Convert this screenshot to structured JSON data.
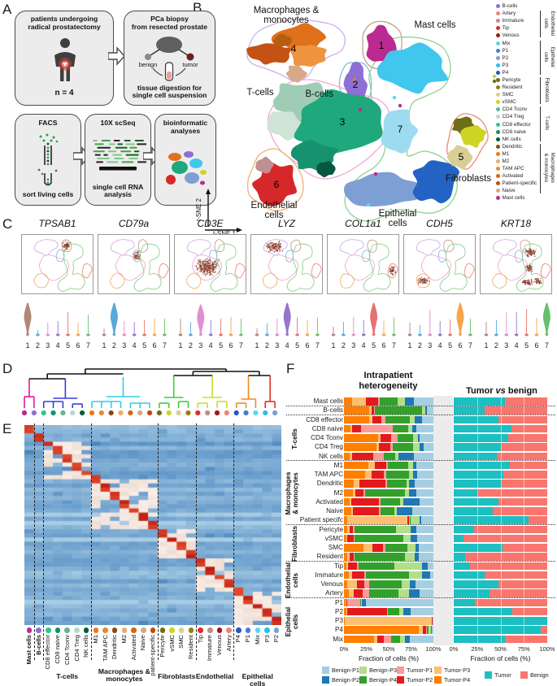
{
  "figure_letters": {
    "a": "A",
    "b": "B",
    "c": "C",
    "d": "D",
    "e": "E",
    "f": "F"
  },
  "panel_a": {
    "boxes": [
      {
        "title": "patients undergoing\nradical prostatectomy",
        "caption": "n = 4"
      },
      {
        "title": "PCa biopsy\nfrom resected prostate",
        "benign_label": "benign",
        "tumor_label": "tumor",
        "caption": "tissue digestion for\nsingle cell suspension"
      },
      {
        "title": "FACS",
        "caption": "sort living cells"
      },
      {
        "title": "10X scSeq",
        "caption": "single cell RNA\nanalysis"
      },
      {
        "title": "bioinformatic\nanalyses"
      }
    ]
  },
  "panel_b": {
    "axis": {
      "x": "t-SNE 1",
      "y": "t-SNE 2"
    },
    "cluster_labels": [
      {
        "num": "1",
        "name": "Mast cells"
      },
      {
        "num": "2",
        "name": "B-cells"
      },
      {
        "num": "3",
        "name": "T-cells"
      },
      {
        "num": "4",
        "name": "Macrophages &\nmonocytes"
      },
      {
        "num": "5",
        "name": "Fibroblasts"
      },
      {
        "num": "6",
        "name": "Endothelial\ncells"
      },
      {
        "num": "7",
        "name": "Epithelial\ncells"
      }
    ],
    "legend": {
      "items": [
        {
          "label": "B-cells",
          "color": "#8d6fd6"
        },
        {
          "label": "Artery",
          "color": "#f08478"
        },
        {
          "label": "Immature",
          "color": "#bc8f8f"
        },
        {
          "label": "Tip",
          "color": "#e02c2c"
        },
        {
          "label": "Venous",
          "color": "#a01818"
        },
        {
          "label": "Mix",
          "color": "#63d2f0"
        },
        {
          "label": "P1",
          "color": "#4a7bd0"
        },
        {
          "label": "P2",
          "color": "#7d9fd4"
        },
        {
          "label": "P3",
          "color": "#2fbde8"
        },
        {
          "label": "P4",
          "color": "#2457c5"
        },
        {
          "label": "Pericyte",
          "color": "#6e6e14"
        },
        {
          "label": "Resident",
          "color": "#9a7d0a"
        },
        {
          "label": "SMC",
          "color": "#d9cf94"
        },
        {
          "label": "vSMC",
          "color": "#cdd422"
        },
        {
          "label": "CD4 Tconv",
          "color": "#63b49a"
        },
        {
          "label": "CD4 Treg",
          "color": "#b9d8c8"
        },
        {
          "label": "CD8 effector",
          "color": "#2ec48e"
        },
        {
          "label": "CD8 naive",
          "color": "#13916a"
        },
        {
          "label": "NK cells",
          "color": "#0b5a3c"
        },
        {
          "label": "Dendritic",
          "color": "#8a4a10"
        },
        {
          "label": "M1",
          "color": "#f07818"
        },
        {
          "label": "M2",
          "color": "#f0aa68"
        },
        {
          "label": "TAM APC",
          "color": "#e88830"
        },
        {
          "label": "Activated",
          "color": "#d8650f"
        },
        {
          "label": "Patient-specific",
          "color": "#c04c0e"
        },
        {
          "label": "Naive",
          "color": "#d6a988"
        },
        {
          "label": "Mast cells",
          "color": "#bb2a90"
        }
      ],
      "groups": [
        {
          "label": "Endothelial\ncells",
          "start": 1,
          "end": 4
        },
        {
          "label": "Epithelial\ncells",
          "start": 5,
          "end": 9
        },
        {
          "label": "Fibroblasts",
          "start": 10,
          "end": 13
        },
        {
          "label": "T-cells",
          "start": 14,
          "end": 18
        },
        {
          "label": "Macrophages\n& monocytes",
          "start": 19,
          "end": 25
        }
      ]
    }
  },
  "panel_c": {
    "genes": [
      "TPSAB1",
      "CD79a",
      "CD3E",
      "LYZ",
      "COL1a1",
      "CDH5",
      "KRT18"
    ],
    "highlighted_population": [
      "Mast cells",
      "B-cells",
      "T-cells",
      "Macrophages & monocytes",
      "Fibroblasts",
      "Endothelial cells",
      "Epithelial cells"
    ],
    "x_ticks": [
      "1",
      "2",
      "3",
      "4",
      "5",
      "6",
      "7"
    ],
    "contour_colors": {
      "macro": "#cbb0e8",
      "mast": "#c89e8a",
      "b": "#85b8e0",
      "t": "#f2a7d3",
      "epi": "#8fd08f",
      "fibro": "#ef8a7a",
      "endo": "#f3b06e"
    },
    "dot_color": "#8a3a26"
  },
  "panel_e": {
    "columns": [
      {
        "label": "Mast cells",
        "color": "#bb2a90",
        "bold": true
      },
      {
        "label": "B-cells",
        "color": "#8d6fd6",
        "bold": true
      },
      {
        "label": "CD8 effector",
        "color": "#2ec48e",
        "bold": false
      },
      {
        "label": "CD8 naive",
        "color": "#13916a",
        "bold": false
      },
      {
        "label": "CD4 Tconv",
        "color": "#63b49a",
        "bold": false
      },
      {
        "label": "CD4 Treg",
        "color": "#b9d8c8",
        "bold": false
      },
      {
        "label": "NK cells",
        "color": "#0b5a3c",
        "bold": false
      },
      {
        "label": "M1",
        "color": "#f07818",
        "bold": false
      },
      {
        "label": "TAM APC",
        "color": "#e88830",
        "bold": false
      },
      {
        "label": "Dendritic",
        "color": "#8a4a10",
        "bold": false
      },
      {
        "label": "M2",
        "color": "#f0aa68",
        "bold": false
      },
      {
        "label": "Activated",
        "color": "#d8650f",
        "bold": false
      },
      {
        "label": "Naive",
        "color": "#d6a988",
        "bold": false
      },
      {
        "label": "patient-specific",
        "color": "#c04c0e",
        "bold": false
      },
      {
        "label": "Pericyte",
        "color": "#6e6e14",
        "bold": false
      },
      {
        "label": "vSMC",
        "color": "#cdd422",
        "bold": false
      },
      {
        "label": "SMC",
        "color": "#d9cf94",
        "bold": false
      },
      {
        "label": "Resident",
        "color": "#9a7d0a",
        "bold": false
      },
      {
        "label": "Tip",
        "color": "#e02c2c",
        "bold": false
      },
      {
        "label": "Immature",
        "color": "#bc8f8f",
        "bold": false
      },
      {
        "label": "Venous",
        "color": "#a01818",
        "bold": false
      },
      {
        "label": "Artery",
        "color": "#f08478",
        "bold": false
      },
      {
        "label": "P4",
        "color": "#2457c5",
        "bold": false
      },
      {
        "label": "P1",
        "color": "#4a7bd0",
        "bold": false
      },
      {
        "label": "Mix",
        "color": "#63d2f0",
        "bold": false
      },
      {
        "label": "P3",
        "color": "#2fbde8",
        "bold": false
      },
      {
        "label": "P2",
        "color": "#7d9fd4",
        "bold": false
      }
    ],
    "separators_after": [
      0,
      1,
      6,
      13,
      17,
      21
    ],
    "group_labels": [
      {
        "label": "T-cells",
        "start": 2,
        "end": 6
      },
      {
        "label": "Macrophages &\nmonocytes",
        "start": 7,
        "end": 13
      },
      {
        "label": "Fibroblasts",
        "start": 14,
        "end": 17
      },
      {
        "label": "Endothelial",
        "start": 18,
        "end": 21
      },
      {
        "label": "Epithelial cells",
        "start": 22,
        "end": 26
      }
    ]
  },
  "panel_f": {
    "title_left": "Intrapatient\nheterogeneity",
    "title_right_pre": "Tumor ",
    "title_right_it": "vs",
    "title_right_post": " benign",
    "xlabel": "Fraction of cells (%)",
    "x_ticks": [
      "0%",
      "25%",
      "50%",
      "75%",
      "100%"
    ],
    "groups": [
      {
        "label": "T-cells",
        "start": 2,
        "end": 6
      },
      {
        "label": "Macrophages\n& monocytes",
        "start": 7,
        "end": 13
      },
      {
        "label": "Fibroblasts",
        "start": 14,
        "end": 17
      },
      {
        "label": "Endothelial\ncells",
        "start": 18,
        "end": 21
      },
      {
        "label": "Epithelial\ncells",
        "start": 22,
        "end": 26
      }
    ],
    "separators_after": [
      0,
      1,
      6,
      13,
      17,
      21
    ],
    "legend_left": [
      {
        "label": "Benign-P1",
        "color": "#a6cee3"
      },
      {
        "label": "Benign-P2",
        "color": "#1f78b4"
      },
      {
        "label": "Benign-P3",
        "color": "#b2df8a"
      },
      {
        "label": "Benign-P4",
        "color": "#33a02c"
      },
      {
        "label": "Tumor-P1",
        "color": "#fb9a99"
      },
      {
        "label": "Tumor-P2",
        "color": "#e31a1c"
      },
      {
        "label": "Tumor-P3",
        "color": "#fdbf6f"
      },
      {
        "label": "Tumor-P4",
        "color": "#ff7f00"
      }
    ],
    "legend_right": [
      {
        "label": "Tumor",
        "color": "#1dbfc1"
      },
      {
        "label": "Benign",
        "color": "#f8766d"
      }
    ]
  },
  "chart_data": [
    {
      "id": "intrapatient_heterogeneity",
      "type": "bar",
      "stacked": true,
      "orientation": "horizontal",
      "title": "Intrapatient heterogeneity",
      "xlabel": "Fraction of cells (%)",
      "xlim": [
        0,
        100
      ],
      "categories": [
        "Mast cells",
        "B-cells",
        "CD8 effector",
        "CD8 naive",
        "CD4 Tconv",
        "CD4 Treg",
        "NK cells",
        "M1",
        "TAM APC",
        "Dendritic",
        "M2",
        "Activated",
        "Naive",
        "Patient specifc",
        "Pericyte",
        "vSMC",
        "SMC",
        "Resident",
        "Tip",
        "Immature",
        "Venous",
        "Artery",
        "P1",
        "P2",
        "P3",
        "P4",
        "Mix"
      ],
      "series_order": [
        "Tumor-P4",
        "Tumor-P3",
        "Tumor-P2",
        "Tumor-P1",
        "Benign-P4",
        "Benign-P3",
        "Benign-P2",
        "Benign-P1"
      ],
      "series_colors": {
        "Tumor-P4": "#ff7f00",
        "Tumor-P3": "#fdbf6f",
        "Tumor-P2": "#e31a1c",
        "Tumor-P1": "#fb9a99",
        "Benign-P4": "#33a02c",
        "Benign-P3": "#b2df8a",
        "Benign-P2": "#1f78b4",
        "Benign-P1": "#a6cee3"
      },
      "rows": [
        [
          9,
          16,
          13,
          2,
          20,
          8,
          10,
          22
        ],
        [
          28,
          3,
          3,
          1,
          52,
          4,
          2,
          7
        ],
        [
          28,
          4,
          10,
          4,
          28,
          5,
          8,
          13
        ],
        [
          7,
          2,
          10,
          36,
          17,
          4,
          5,
          19
        ],
        [
          38,
          3,
          12,
          7,
          17,
          6,
          2,
          15
        ],
        [
          36,
          3,
          13,
          3,
          22,
          8,
          4,
          11
        ],
        [
          6,
          3,
          24,
          12,
          12,
          4,
          17,
          22
        ],
        [
          27,
          8,
          12,
          2,
          23,
          5,
          4,
          19
        ],
        [
          24,
          7,
          14,
          2,
          26,
          4,
          5,
          18
        ],
        [
          11,
          6,
          29,
          2,
          22,
          3,
          6,
          21
        ],
        [
          10,
          3,
          9,
          2,
          44,
          5,
          8,
          19
        ],
        [
          6,
          2,
          31,
          2,
          22,
          3,
          19,
          15
        ],
        [
          8,
          2,
          29,
          2,
          15,
          3,
          17,
          24
        ],
        [
          4,
          67,
          2,
          1,
          1,
          10,
          1,
          14
        ],
        [
          4,
          2,
          4,
          2,
          46,
          17,
          6,
          19
        ],
        [
          3,
          1,
          7,
          1,
          54,
          9,
          7,
          18
        ],
        [
          22,
          10,
          12,
          2,
          25,
          9,
          4,
          16
        ],
        [
          4,
          2,
          5,
          1,
          56,
          11,
          5,
          16
        ],
        [
          3,
          2,
          10,
          1,
          40,
          31,
          7,
          6
        ],
        [
          5,
          4,
          14,
          2,
          48,
          14,
          9,
          4
        ],
        [
          4,
          11,
          8,
          5,
          37,
          9,
          6,
          20
        ],
        [
          5,
          6,
          10,
          7,
          33,
          12,
          12,
          15
        ],
        [
          2,
          1,
          1,
          14,
          1,
          1,
          5,
          75
        ],
        [
          3,
          1,
          44,
          1,
          13,
          4,
          9,
          25
        ],
        [
          1,
          97,
          1,
          0,
          0,
          0,
          0,
          1
        ],
        [
          84,
          4,
          4,
          1,
          2,
          2,
          1,
          2
        ],
        [
          34,
          3,
          8,
          8,
          10,
          5,
          6,
          26
        ]
      ]
    },
    {
      "id": "tumor_vs_benign",
      "type": "bar",
      "stacked": true,
      "orientation": "horizontal",
      "title": "Tumor vs benign",
      "xlabel": "Fraction of cells (%)",
      "xlim": [
        0,
        100
      ],
      "categories": [
        "Mast cells",
        "B-cells",
        "CD8 effector",
        "CD8 naive",
        "CD4 Tconv",
        "CD4 Treg",
        "NK cells",
        "M1",
        "TAM APC",
        "Dendritic",
        "M2",
        "Activated",
        "Naive",
        "Patient specifc",
        "Pericyte",
        "vSMC",
        "SMC",
        "Resident",
        "Tip",
        "Immature",
        "Venous",
        "Artery",
        "P1",
        "P2",
        "P3",
        "P4",
        "Mix"
      ],
      "series": [
        {
          "name": "Tumor",
          "color": "#1dbfc1",
          "values": [
            55,
            33,
            48,
            62,
            58,
            50,
            46,
            60,
            53,
            50,
            25,
            48,
            42,
            80,
            22,
            10,
            52,
            12,
            17,
            33,
            48,
            38,
            23,
            63,
            100,
            93,
            55
          ]
        },
        {
          "name": "Benign",
          "color": "#f8766d",
          "values": [
            45,
            67,
            52,
            38,
            42,
            50,
            54,
            40,
            47,
            50,
            75,
            52,
            58,
            20,
            78,
            90,
            48,
            88,
            83,
            67,
            52,
            62,
            77,
            37,
            0,
            7,
            45
          ]
        }
      ]
    },
    {
      "id": "marker_gene_violins",
      "type": "violin",
      "genes": [
        "TPSAB1",
        "CD79a",
        "CD3E",
        "LYZ",
        "COL1a1",
        "CDH5",
        "KRT18"
      ],
      "clusters": [
        "1",
        "2",
        "3",
        "4",
        "5",
        "6",
        "7"
      ],
      "cluster_colors": [
        "#b08878",
        "#5aa7dc",
        "#e08fd0",
        "#9575cd",
        "#e57373",
        "#f5a54a",
        "#6abf69"
      ],
      "values": {
        "TPSAB1": [
          1,
          0.18,
          0.4,
          0.45,
          0.72,
          0.4,
          0.65
        ],
        "CD79a": [
          0.22,
          1,
          0.45,
          0.42,
          0.48,
          0.52,
          0.52
        ],
        "CD3E": [
          0.52,
          0.42,
          0.95,
          0.48,
          0.52,
          0.58,
          0.52
        ],
        "LYZ": [
          0.22,
          0.38,
          0.52,
          1,
          0.56,
          0.48,
          0.56
        ],
        "COL1a1": [
          0.28,
          0.42,
          0.58,
          0.48,
          1,
          0.46,
          0.56
        ],
        "CDH5": [
          0.4,
          0.33,
          0.8,
          0.45,
          0.5,
          1,
          0.52
        ],
        "KRT18": [
          0.42,
          0.48,
          0.72,
          0.72,
          0.82,
          0.55,
          1
        ]
      },
      "peak_cluster_index": [
        0,
        1,
        2,
        3,
        4,
        5,
        6
      ]
    },
    {
      "id": "marker_heatmap",
      "type": "heatmap",
      "description": "Marker genes (rows) vs cell populations (columns); red = high expression on diagonal blocks, blue = low",
      "columns": [
        "Mast cells",
        "B-cells",
        "CD8 effector",
        "CD8 naive",
        "CD4 Tconv",
        "CD4 Treg",
        "NK cells",
        "M1",
        "TAM APC",
        "Dendritic",
        "M2",
        "Activated",
        "Naive",
        "patient-specific",
        "Pericyte",
        "vSMC",
        "SMC",
        "Resident",
        "Tip",
        "Immature",
        "Venous",
        "Artery",
        "P4",
        "P1",
        "Mix",
        "P3",
        "P2"
      ],
      "n_gene_rows": 48
    }
  ]
}
